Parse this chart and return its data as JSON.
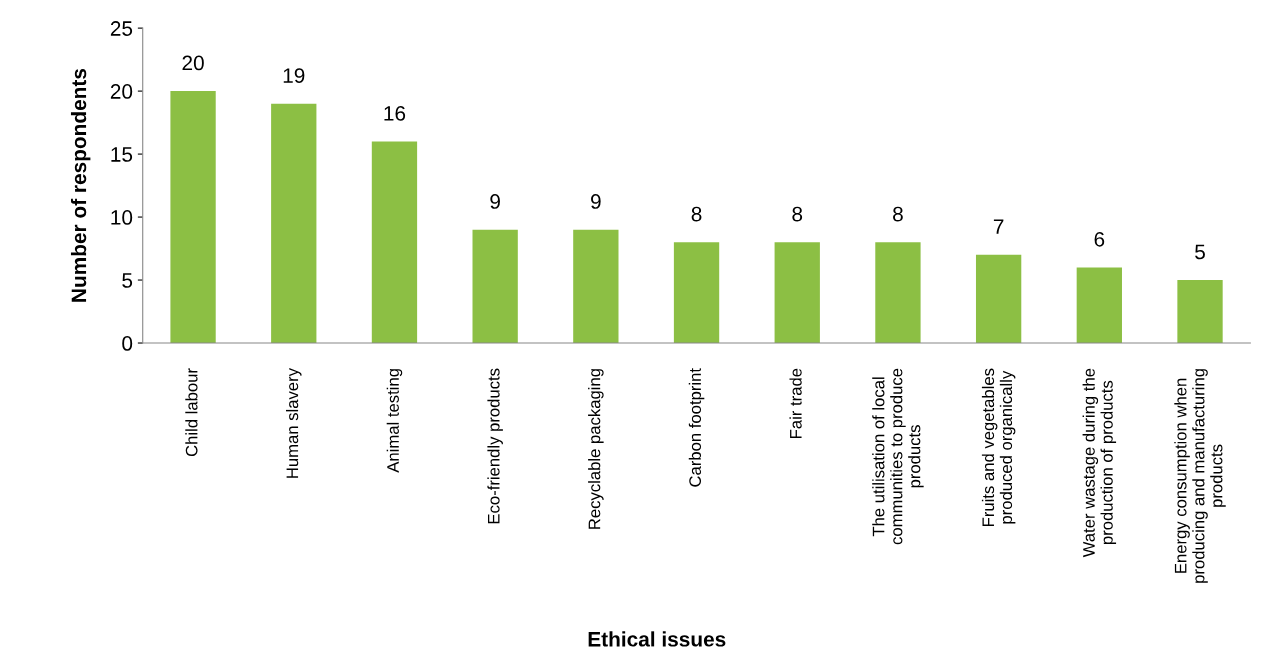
{
  "chart_data": {
    "type": "bar",
    "xlabel": "Ethical issues",
    "ylabel": "Number of respondents",
    "categories": [
      "Child labour",
      "Human slavery",
      "Animal testing",
      "Eco-friendly products",
      "Recyclable packaging",
      "Carbon footprint",
      "Fair trade",
      "The utilisation of local\ncommunities to produce\nproducts",
      "Fruits and vegetables\nproduced organically",
      "Water wastage during the\nproduction of products",
      "Energy consumption when\nproducing and manufacturing\nproducts"
    ],
    "values": [
      20,
      19,
      16,
      9,
      9,
      8,
      8,
      8,
      7,
      6,
      5
    ],
    "color": "#8cbf44",
    "ylim": [
      0,
      25
    ],
    "yticks": [
      0,
      5,
      10,
      15,
      20,
      25
    ],
    "data_labels": true,
    "grid": false,
    "legend": false
  }
}
